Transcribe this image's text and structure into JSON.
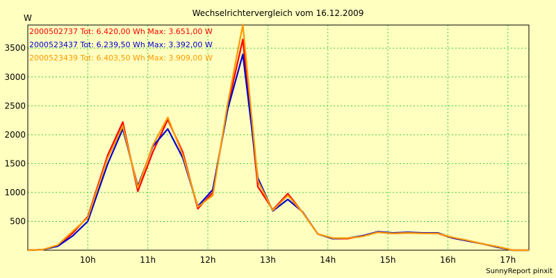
{
  "chart_data": {
    "type": "line",
    "title": "Wechselrichtervergleich vom 16.12.2009",
    "ylabel": "W",
    "xlabel": "",
    "footer": "SunnyReport pinxit",
    "xlim": [
      9.0,
      17.35
    ],
    "ylim": [
      0,
      3900
    ],
    "x_ticks": [
      {
        "value": 10,
        "label": "10h"
      },
      {
        "value": 11,
        "label": "11h"
      },
      {
        "value": 12,
        "label": "12h"
      },
      {
        "value": 13,
        "label": "13h"
      },
      {
        "value": 14,
        "label": "14h"
      },
      {
        "value": 15,
        "label": "15h"
      },
      {
        "value": 16,
        "label": "16h"
      },
      {
        "value": 17,
        "label": "17h"
      }
    ],
    "y_ticks": [
      {
        "value": 500,
        "label": "500"
      },
      {
        "value": 1000,
        "label": "1000"
      },
      {
        "value": 1500,
        "label": "1500"
      },
      {
        "value": 2000,
        "label": "2000"
      },
      {
        "value": 2500,
        "label": "2500"
      },
      {
        "value": 3000,
        "label": "3000"
      },
      {
        "value": 3500,
        "label": "3500"
      }
    ],
    "grid": true,
    "legend_position": "top-left",
    "colors": {
      "background": "#ffffc0",
      "grid": "#33cc33",
      "axis": "#000000"
    },
    "series": [
      {
        "name": "2000502737",
        "legend": "2000502737 Tot: 6.420,00 Wh Max: 3.651,00 W",
        "color": "#ff0000",
        "x": [
          9.0,
          9.25,
          9.5,
          9.75,
          10.0,
          10.333,
          10.583,
          10.833,
          11.083,
          11.333,
          11.583,
          11.833,
          12.083,
          12.333,
          12.583,
          12.833,
          13.083,
          13.333,
          13.583,
          13.833,
          14.083,
          14.333,
          14.583,
          14.833,
          15.083,
          15.333,
          15.583,
          15.833,
          16.083,
          16.333,
          16.583,
          16.833,
          17.083,
          17.35
        ],
        "y": [
          0,
          10,
          80,
          300,
          580,
          1650,
          2220,
          1020,
          1700,
          2260,
          1700,
          720,
          1000,
          2500,
          3651,
          1100,
          700,
          980,
          650,
          280,
          200,
          200,
          250,
          310,
          290,
          300,
          300,
          290,
          210,
          160,
          110,
          50,
          0,
          0
        ]
      },
      {
        "name": "2000523437",
        "legend": "2000523437 Tot: 6.239,50 Wh Max: 3.392,00 W",
        "color": "#0000cc",
        "x": [
          9.0,
          9.25,
          9.5,
          9.75,
          10.0,
          10.333,
          10.583,
          10.833,
          11.083,
          11.333,
          11.583,
          11.833,
          12.083,
          12.333,
          12.583,
          12.833,
          13.083,
          13.333,
          13.583,
          13.833,
          14.083,
          14.333,
          14.583,
          14.833,
          15.083,
          15.333,
          15.583,
          15.833,
          16.083,
          16.333,
          16.583,
          16.833,
          17.083,
          17.35
        ],
        "y": [
          0,
          10,
          70,
          250,
          500,
          1500,
          2100,
          1110,
          1800,
          2100,
          1600,
          760,
          1050,
          2450,
          3392,
          1250,
          680,
          880,
          660,
          280,
          200,
          210,
          250,
          320,
          300,
          310,
          300,
          300,
          210,
          160,
          110,
          50,
          0,
          0
        ]
      },
      {
        "name": "2000523439",
        "legend": "2000523439 Tot: 6.403,50 Wh Max: 3.909,00 W",
        "color": "#ff9900",
        "x": [
          9.0,
          9.25,
          9.5,
          9.75,
          10.0,
          10.333,
          10.583,
          10.833,
          11.083,
          11.333,
          11.583,
          11.833,
          12.083,
          12.333,
          12.583,
          12.833,
          13.083,
          13.333,
          13.583,
          13.833,
          14.083,
          14.333,
          14.583,
          14.833,
          15.083,
          15.333,
          15.583,
          15.833,
          16.083,
          16.333,
          16.583,
          16.833,
          17.083,
          17.35
        ],
        "y": [
          0,
          10,
          90,
          330,
          560,
          1600,
          2150,
          1080,
          1820,
          2300,
          1650,
          750,
          950,
          2550,
          3909,
          1200,
          690,
          950,
          650,
          280,
          210,
          210,
          240,
          310,
          290,
          300,
          290,
          290,
          220,
          170,
          110,
          60,
          0,
          0
        ]
      }
    ]
  }
}
